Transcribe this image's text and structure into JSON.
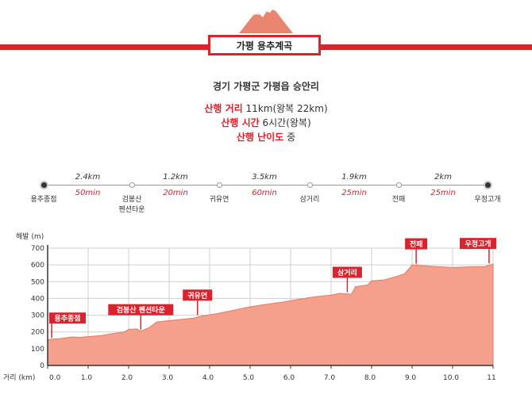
{
  "header": {
    "title": "가평 용추계곡",
    "location": "경기 가평군 가평읍 승안리",
    "distance_label": "산행 거리",
    "distance_value": "11km(왕복 22km)",
    "time_label": "산행 시간",
    "time_value": "6시간(왕복)",
    "difficulty_label": "산행 난이도",
    "difficulty_value": "중"
  },
  "route": {
    "stops": [
      {
        "name": "용추종점",
        "name2": ""
      },
      {
        "name": "검봉산",
        "name2": "펜션타운"
      },
      {
        "name": "귀유연",
        "name2": ""
      },
      {
        "name": "삼거리",
        "name2": ""
      },
      {
        "name": "전패",
        "name2": ""
      },
      {
        "name": "우정고개",
        "name2": ""
      }
    ],
    "segments": [
      {
        "distance": "2.4km",
        "time": "50min"
      },
      {
        "distance": "1.2km",
        "time": "20min"
      },
      {
        "distance": "3.5km",
        "time": "60min"
      },
      {
        "distance": "1.9km",
        "time": "25min"
      },
      {
        "distance": "2km",
        "time": "25min"
      }
    ]
  },
  "colors": {
    "accent": "#d9232d",
    "area_fill": "#f4a08c",
    "area_stroke": "#e27a64"
  },
  "chart_data": {
    "type": "area",
    "ylabel": "해발 (m)",
    "xlabel": "거리 (km)",
    "xlim": [
      0,
      11
    ],
    "ylim": [
      0,
      700
    ],
    "x_ticks": [
      "0.0",
      "1.0",
      "2.0",
      "3.0",
      "4.0",
      "5.0",
      "6.0",
      "7.0",
      "8.0",
      "9.0",
      "10.0",
      "11"
    ],
    "x_tick_values": [
      0,
      1,
      2,
      3,
      4,
      5,
      6,
      7,
      8,
      9,
      10,
      11
    ],
    "y_ticks": [
      0,
      100,
      200,
      300,
      400,
      500,
      600,
      700
    ],
    "grid": true,
    "series": [
      {
        "x": [
          0,
          0.3,
          0.6,
          0.8,
          1.0,
          1.3,
          1.6,
          1.9,
          2.0,
          2.2,
          2.3,
          2.5,
          2.7,
          2.8,
          3.0,
          3.3,
          3.6,
          3.8,
          4.2,
          4.6,
          5.0,
          5.4,
          5.8,
          6.2,
          6.6,
          7.0,
          7.2,
          7.5,
          7.6,
          7.9,
          8.0,
          8.3,
          8.6,
          8.8,
          8.9,
          9.0,
          9.3,
          9.6,
          10.0,
          10.4,
          10.8,
          11.0
        ],
        "y": [
          155,
          160,
          170,
          168,
          172,
          178,
          190,
          200,
          215,
          218,
          205,
          225,
          260,
          262,
          268,
          275,
          282,
          295,
          310,
          330,
          350,
          365,
          378,
          395,
          410,
          420,
          430,
          425,
          470,
          480,
          505,
          510,
          530,
          545,
          570,
          600,
          595,
          590,
          585,
          588,
          590,
          605
        ]
      }
    ],
    "annotations": [
      {
        "label": "용추종점",
        "x": 0.1,
        "y": 155
      },
      {
        "label": "검봉산 펜션타운",
        "x": 2.3,
        "y": 205
      },
      {
        "label": "귀유연",
        "x": 3.7,
        "y": 292
      },
      {
        "label": "삼거리",
        "x": 7.4,
        "y": 428
      },
      {
        "label": "전패",
        "x": 9.1,
        "y": 598
      },
      {
        "label": "우정고개",
        "x": 10.9,
        "y": 600
      }
    ]
  }
}
